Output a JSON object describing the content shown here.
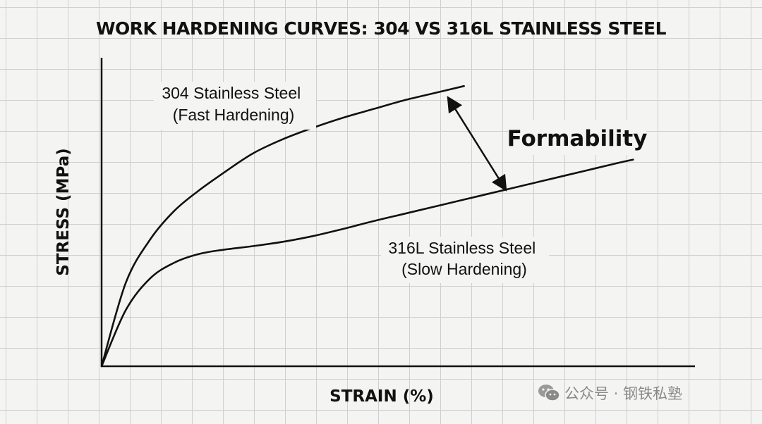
{
  "chart_data": {
    "type": "line",
    "title": "WORK HARDENING CURVES: 304 VS 316L STAINLESS STEEL",
    "xlabel": "STRAIN (%)",
    "ylabel": "STRESS (MPa)",
    "grid": true,
    "xlim": [
      0,
      100
    ],
    "ylim": [
      0,
      100
    ],
    "series": [
      {
        "name": "304 Stainless Steel",
        "label_lines": [
          "304 Stainless Steel",
          "(Fast Hardening)"
        ],
        "x": [
          0,
          4,
          8,
          12,
          16,
          20,
          25,
          30,
          35,
          40,
          45,
          50,
          55,
          60
        ],
        "y": [
          0,
          29,
          44,
          54,
          61,
          67,
          74,
          79,
          83,
          86.5,
          89.5,
          92.5,
          95,
          97.5
        ]
      },
      {
        "name": "316L Stainless Steel",
        "label_lines": [
          "316L Stainless Steel",
          "(Slow Hardening)"
        ],
        "x": [
          0,
          4,
          8,
          12,
          16,
          20,
          25,
          30,
          35,
          40,
          45,
          50,
          55,
          60,
          65,
          70,
          75,
          80,
          85,
          88
        ],
        "y": [
          0,
          19.5,
          30.5,
          36,
          39,
          40.5,
          41.8,
          43.3,
          45.3,
          47.8,
          50.5,
          53,
          55.5,
          58,
          60.5,
          63,
          65.5,
          68,
          70.5,
          71.9
        ]
      }
    ],
    "annotations": [
      {
        "text": "Formability",
        "arrow": "double-headed, between the two curves near strain 58-68"
      }
    ]
  },
  "watermark": {
    "icon": "wechat-icon",
    "text": "公众号 · 钢铁私塾"
  }
}
